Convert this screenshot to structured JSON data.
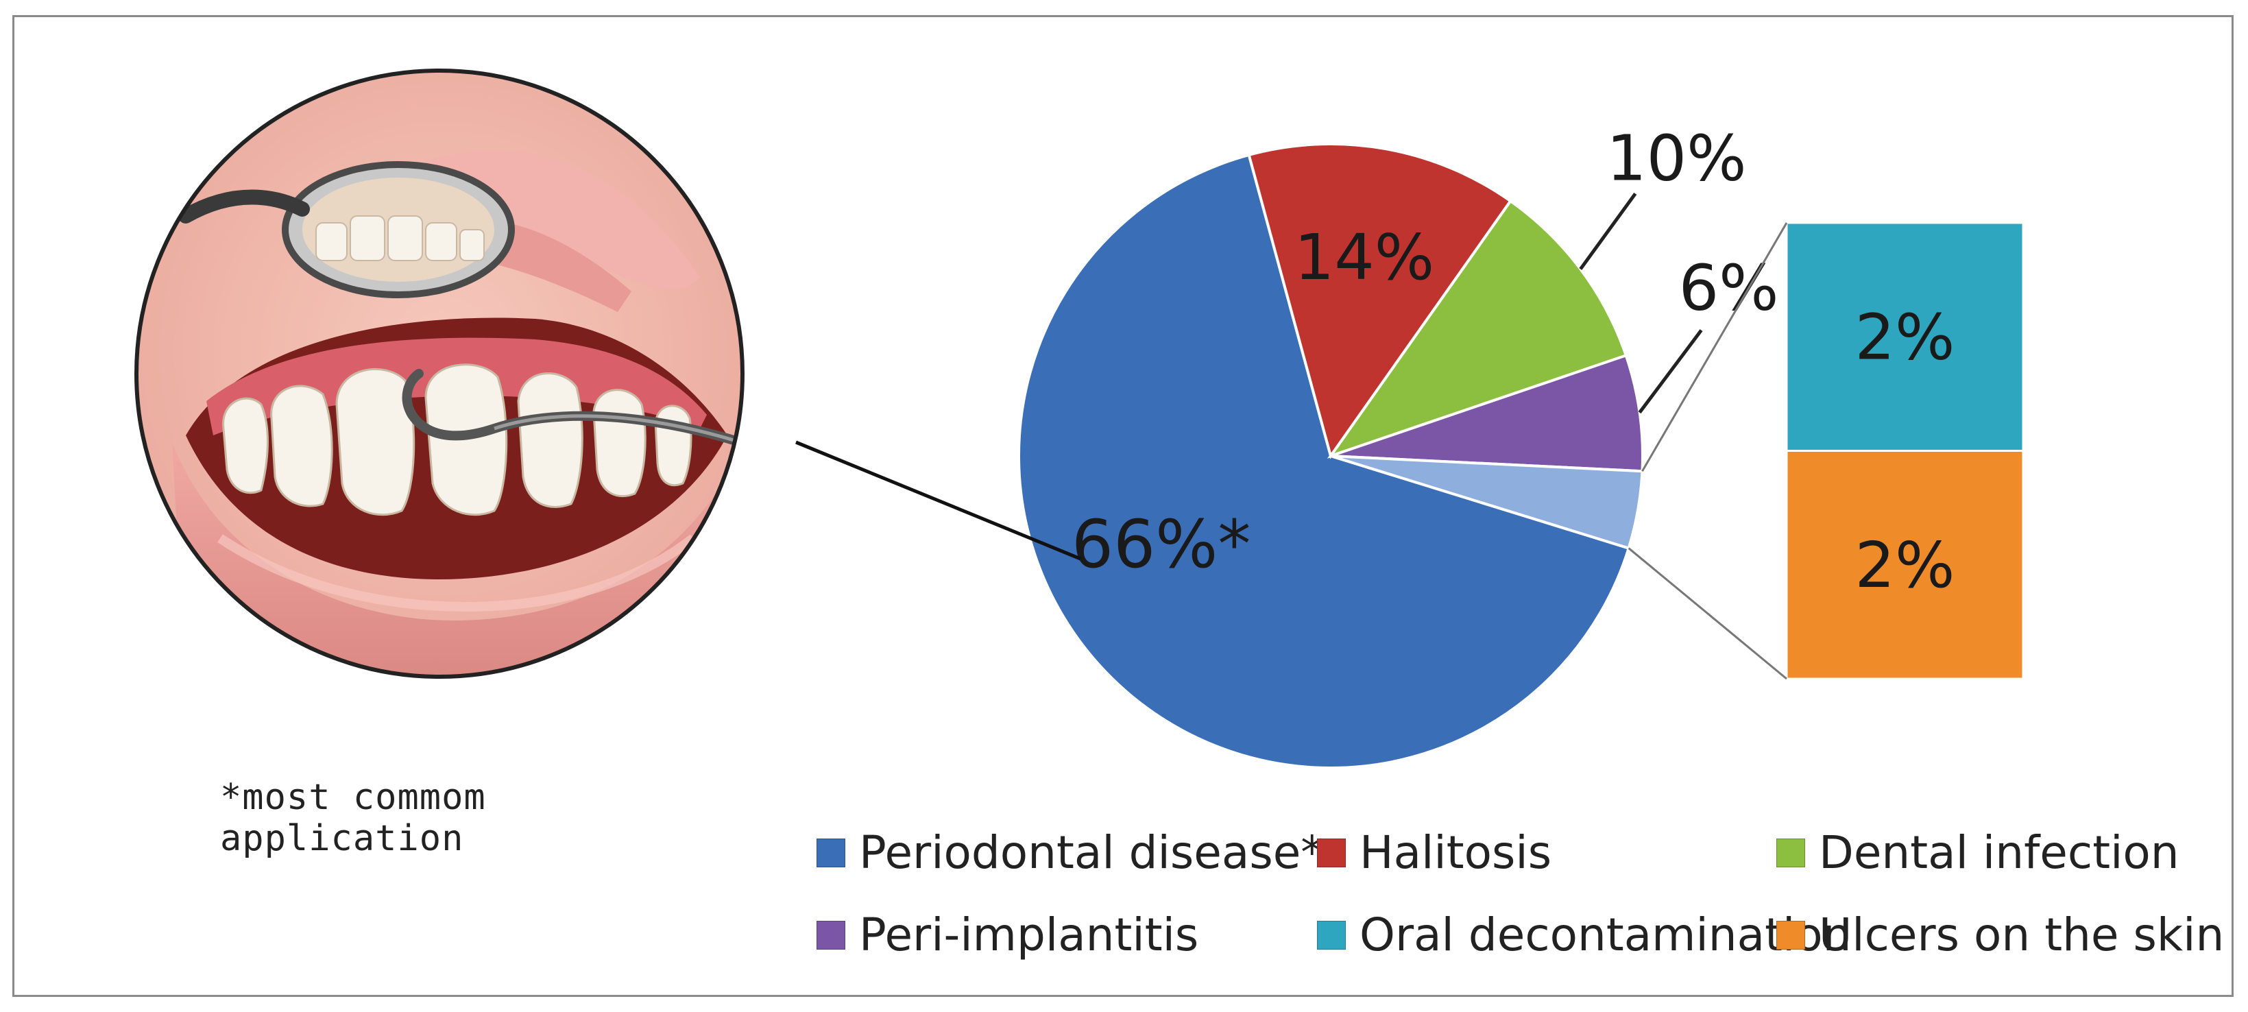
{
  "caption": "*most commom application",
  "colors": {
    "frame": "#8a8a8a",
    "periodontal": "#3a6fb8",
    "halitosis": "#c0342f",
    "dental_infection": "#8cbf3f",
    "peri_implantitis": "#7b56a6",
    "oral_decontamination": "#2fa6c0",
    "ulcers": "#f08b2a",
    "small_slice": "#8eaede"
  },
  "icons": [
    "dental-illustration",
    "dental-mirror-icon",
    "periodontal-probe-icon"
  ],
  "legend": [
    {
      "label": "Periodontal disease*",
      "color": "#3a6fb8"
    },
    {
      "label": "Halitosis",
      "color": "#c0342f"
    },
    {
      "label": "Dental infection",
      "color": "#8cbf3f"
    },
    {
      "label": "Peri-implantitis",
      "color": "#7b56a6"
    },
    {
      "label": "Oral decontamination",
      "color": "#2fa6c0"
    },
    {
      "label": "Ulcers on the skin",
      "color": "#f08b2a"
    }
  ],
  "chart_data": {
    "type": "pie",
    "subtype": "pie-of-pie (bar of pie)",
    "categories": [
      "Periodontal disease*",
      "Halitosis",
      "Dental infection",
      "Peri-implantitis",
      "Oral decontamination",
      "Ulcers on the skin"
    ],
    "values": [
      66,
      14,
      10,
      6,
      2,
      2
    ],
    "unit": "%",
    "labels": {
      "Periodontal disease*": "66%*",
      "Halitosis": "14%",
      "Dental infection": "10%",
      "Peri-implantitis": "6%",
      "Oral decontamination": "2%",
      "Ulcers on the skin": "2%"
    },
    "combined_slice": {
      "members": [
        "Oral decontamination",
        "Ulcers on the skin"
      ],
      "value": 4
    },
    "bar_stack": [
      "Oral decontamination",
      "Ulcers on the skin"
    ],
    "legend_position": "bottom",
    "title": "",
    "note": "*most commom application"
  }
}
